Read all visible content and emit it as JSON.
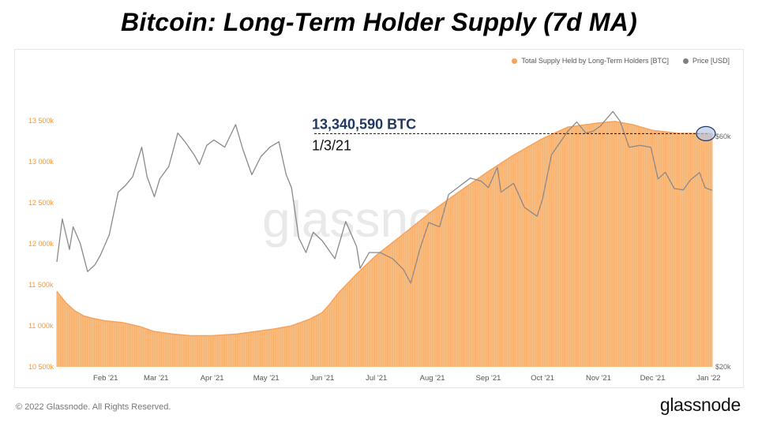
{
  "title": "Bitcoin: Long-Term Holder Supply (7d MA)",
  "legend": [
    {
      "label": "Total Supply Held by Long-Term Holders [BTC]",
      "color": "#f7a35c"
    },
    {
      "label": "Price [USD]",
      "color": "#7f7f7f"
    }
  ],
  "footer": {
    "copyright": "© 2022 Glassnode. All Rights Reserved.",
    "brand": "glassnode",
    "watermark": "glassnode"
  },
  "annotation": {
    "value_label": "13,340,590 BTC",
    "date_label": "1/3/21",
    "value": 13340590
  },
  "colors": {
    "supply": "#f7a35c",
    "supply_fill": "#fbc58c",
    "price": "#8a8a8a",
    "left_axis": "#f09a3e",
    "annotation_value": "#1f3864"
  },
  "chart_data": {
    "type": "area",
    "x_tick_labels": [
      "Feb '21",
      "Mar '21",
      "Apr '21",
      "May '21",
      "Jun '21",
      "Jul '21",
      "Aug '21",
      "Sep '21",
      "Oct '21",
      "Nov '21",
      "Dec '21",
      "Jan '22"
    ],
    "x_range": [
      "2021-01-05",
      "2022-01-03"
    ],
    "left_axis": {
      "ticks": [
        10500000,
        11000000,
        11500000,
        12000000,
        12500000,
        13000000,
        13500000
      ],
      "tick_labels": [
        "10 500k",
        "11 000k",
        "11 500k",
        "12 000k",
        "12 500k",
        "13 000k",
        "13 500k"
      ],
      "ylim": [
        10500000,
        13700000
      ]
    },
    "right_axis": {
      "scale": "log",
      "ticks": [
        20000,
        60000
      ],
      "tick_labels": [
        "$20k",
        "$60k"
      ],
      "ylim": [
        20000,
        70000
      ]
    },
    "grid": false,
    "legend_position": "top-right",
    "series": [
      {
        "name": "Total Supply Held by Long-Term Holders [BTC]",
        "axis": "left",
        "points": [
          [
            "2021-01-05",
            11420000
          ],
          [
            "2021-01-10",
            11280000
          ],
          [
            "2021-01-15",
            11180000
          ],
          [
            "2021-01-20",
            11120000
          ],
          [
            "2021-01-25",
            11090000
          ],
          [
            "2021-02-01",
            11060000
          ],
          [
            "2021-02-10",
            11040000
          ],
          [
            "2021-02-20",
            10990000
          ],
          [
            "2021-02-28",
            10930000
          ],
          [
            "2021-03-10",
            10900000
          ],
          [
            "2021-03-20",
            10880000
          ],
          [
            "2021-04-01",
            10880000
          ],
          [
            "2021-04-15",
            10900000
          ],
          [
            "2021-04-25",
            10930000
          ],
          [
            "2021-05-05",
            10960000
          ],
          [
            "2021-05-15",
            11000000
          ],
          [
            "2021-05-25",
            11080000
          ],
          [
            "2021-06-01",
            11160000
          ],
          [
            "2021-06-05",
            11260000
          ],
          [
            "2021-06-10",
            11400000
          ],
          [
            "2021-06-20",
            11630000
          ],
          [
            "2021-07-01",
            11860000
          ],
          [
            "2021-07-15",
            12100000
          ],
          [
            "2021-08-01",
            12400000
          ],
          [
            "2021-08-15",
            12620000
          ],
          [
            "2021-09-01",
            12880000
          ],
          [
            "2021-09-15",
            13080000
          ],
          [
            "2021-10-01",
            13280000
          ],
          [
            "2021-10-15",
            13420000
          ],
          [
            "2021-11-01",
            13470000
          ],
          [
            "2021-11-10",
            13490000
          ],
          [
            "2021-11-20",
            13450000
          ],
          [
            "2021-12-01",
            13380000
          ],
          [
            "2021-12-15",
            13345000
          ],
          [
            "2022-01-03",
            13340590
          ]
        ]
      },
      {
        "name": "Price [USD]",
        "axis": "right",
        "points": [
          [
            "2021-01-05",
            33000
          ],
          [
            "2021-01-08",
            40500
          ],
          [
            "2021-01-12",
            35000
          ],
          [
            "2021-01-14",
            39000
          ],
          [
            "2021-01-18",
            36000
          ],
          [
            "2021-01-22",
            31500
          ],
          [
            "2021-01-26",
            32500
          ],
          [
            "2021-01-29",
            34000
          ],
          [
            "2021-02-03",
            37500
          ],
          [
            "2021-02-08",
            46000
          ],
          [
            "2021-02-12",
            47500
          ],
          [
            "2021-02-16",
            49500
          ],
          [
            "2021-02-21",
            57000
          ],
          [
            "2021-02-24",
            49500
          ],
          [
            "2021-02-28",
            45000
          ],
          [
            "2021-03-03",
            49000
          ],
          [
            "2021-03-08",
            52000
          ],
          [
            "2021-03-13",
            61000
          ],
          [
            "2021-03-17",
            58500
          ],
          [
            "2021-03-22",
            55000
          ],
          [
            "2021-03-25",
            52500
          ],
          [
            "2021-03-29",
            57500
          ],
          [
            "2021-04-02",
            59000
          ],
          [
            "2021-04-08",
            57000
          ],
          [
            "2021-04-14",
            63500
          ],
          [
            "2021-04-18",
            56500
          ],
          [
            "2021-04-23",
            50000
          ],
          [
            "2021-04-28",
            54500
          ],
          [
            "2021-05-03",
            57000
          ],
          [
            "2021-05-08",
            58500
          ],
          [
            "2021-05-12",
            50000
          ],
          [
            "2021-05-15",
            47000
          ],
          [
            "2021-05-19",
            37000
          ],
          [
            "2021-05-23",
            34500
          ],
          [
            "2021-05-27",
            38000
          ],
          [
            "2021-06-01",
            36500
          ],
          [
            "2021-06-08",
            33500
          ],
          [
            "2021-06-14",
            40000
          ],
          [
            "2021-06-20",
            35500
          ],
          [
            "2021-06-22",
            32000
          ],
          [
            "2021-06-27",
            34500
          ],
          [
            "2021-07-03",
            34500
          ],
          [
            "2021-07-10",
            33500
          ],
          [
            "2021-07-16",
            31800
          ],
          [
            "2021-07-20",
            29800
          ],
          [
            "2021-07-25",
            35000
          ],
          [
            "2021-07-30",
            39800
          ],
          [
            "2021-08-05",
            39000
          ],
          [
            "2021-08-10",
            45500
          ],
          [
            "2021-08-15",
            47000
          ],
          [
            "2021-08-22",
            49200
          ],
          [
            "2021-08-28",
            48500
          ],
          [
            "2021-09-01",
            47000
          ],
          [
            "2021-09-06",
            51800
          ],
          [
            "2021-09-08",
            46000
          ],
          [
            "2021-09-15",
            48000
          ],
          [
            "2021-09-21",
            42800
          ],
          [
            "2021-09-28",
            41000
          ],
          [
            "2021-10-01",
            44500
          ],
          [
            "2021-10-06",
            55000
          ],
          [
            "2021-10-15",
            61500
          ],
          [
            "2021-10-20",
            64300
          ],
          [
            "2021-10-25",
            61000
          ],
          [
            "2021-10-29",
            61500
          ],
          [
            "2021-11-02",
            63000
          ],
          [
            "2021-11-09",
            67600
          ],
          [
            "2021-11-13",
            64500
          ],
          [
            "2021-11-18",
            57000
          ],
          [
            "2021-11-24",
            57500
          ],
          [
            "2021-11-30",
            57000
          ],
          [
            "2021-12-04",
            49000
          ],
          [
            "2021-12-08",
            50600
          ],
          [
            "2021-12-13",
            46800
          ],
          [
            "2021-12-18",
            46500
          ],
          [
            "2021-12-22",
            48800
          ],
          [
            "2021-12-27",
            50500
          ],
          [
            "2021-12-30",
            47000
          ],
          [
            "2022-01-03",
            46400
          ]
        ]
      }
    ]
  }
}
